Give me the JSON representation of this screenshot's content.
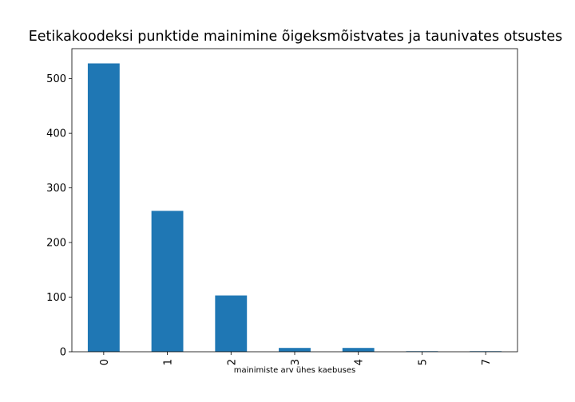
{
  "chart_data": {
    "type": "bar",
    "title": "Eetikakoodeksi punktide mainimine õigeksmõistvates ja taunivates otsustes",
    "xlabel": "mainimiste arv ühes kaebuses",
    "ylabel": "",
    "categories": [
      "0",
      "1",
      "2",
      "3",
      "4",
      "5",
      "7"
    ],
    "values": [
      528,
      258,
      103,
      7,
      7,
      1,
      1
    ],
    "ylim": [
      0,
      555
    ],
    "yticks": [
      0,
      100,
      200,
      300,
      400,
      500
    ],
    "bar_color": "#1f77b4",
    "grid": false,
    "legend": "none"
  }
}
